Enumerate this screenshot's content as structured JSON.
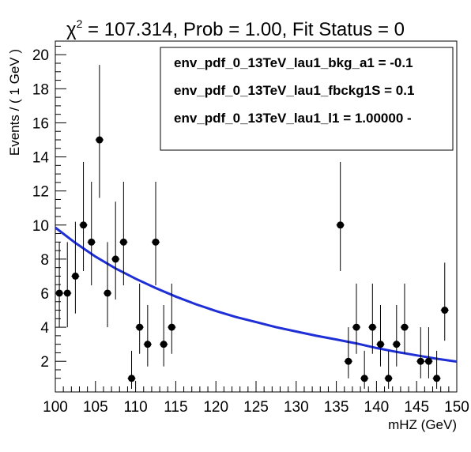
{
  "chart_data": {
    "type": "scatter",
    "title_prefix": "χ",
    "title_sup": "2",
    "title_rest": " = 107.314, Prob = 1.00, Fit Status = 0",
    "xlabel": "mHZ (GeV)",
    "ylabel": "Events / ( 1 GeV )",
    "xlim": [
      100,
      150
    ],
    "ylim": [
      0.2,
      20.8
    ],
    "x_ticks": [
      100,
      105,
      110,
      115,
      120,
      125,
      130,
      135,
      140,
      145,
      150
    ],
    "y_ticks": [
      2,
      4,
      6,
      8,
      10,
      12,
      14,
      16,
      18,
      20
    ],
    "legend": {
      "position": "top-right",
      "entries": [
        "env_pdf_0_13TeV_lau1_bkg_a1 = -0.1",
        "env_pdf_0_13TeV_lau1_fbckg1S =  0.1",
        "env_pdf_0_13TeV_lau1_l1 =  1.00000 -"
      ]
    },
    "series": [
      {
        "type": "points",
        "color": "#000000",
        "x": [
          100.5,
          101.5,
          102.5,
          103.5,
          104.5,
          105.5,
          106.5,
          107.5,
          108.5,
          109.5,
          110.5,
          111.5,
          112.5,
          113.5,
          114.5,
          135.5,
          136.5,
          137.5,
          138.5,
          139.5,
          140.5,
          141.5,
          142.5,
          143.5,
          145.5,
          146.5,
          147.5,
          148.5
        ],
        "y": [
          6,
          6,
          7,
          10,
          9,
          15,
          6,
          8,
          9,
          1,
          4,
          3,
          9,
          3,
          4,
          10,
          2,
          4,
          1,
          4,
          3,
          1,
          3,
          4,
          2,
          2,
          1,
          5
        ]
      },
      {
        "type": "fit-curve",
        "color": "#1f2fd6",
        "x": [
          100,
          102.5,
          105,
          107.5,
          110,
          112.5,
          115,
          117.5,
          120,
          122.5,
          125,
          127.5,
          130,
          132.5,
          135,
          137.5,
          140,
          142.5,
          145,
          147.5,
          150
        ],
        "y": [
          9.85,
          8.95,
          8.15,
          7.45,
          6.85,
          6.3,
          5.8,
          5.35,
          4.95,
          4.6,
          4.3,
          4.0,
          3.75,
          3.5,
          3.28,
          3.05,
          2.78,
          2.55,
          2.35,
          2.15,
          1.98
        ]
      }
    ]
  }
}
